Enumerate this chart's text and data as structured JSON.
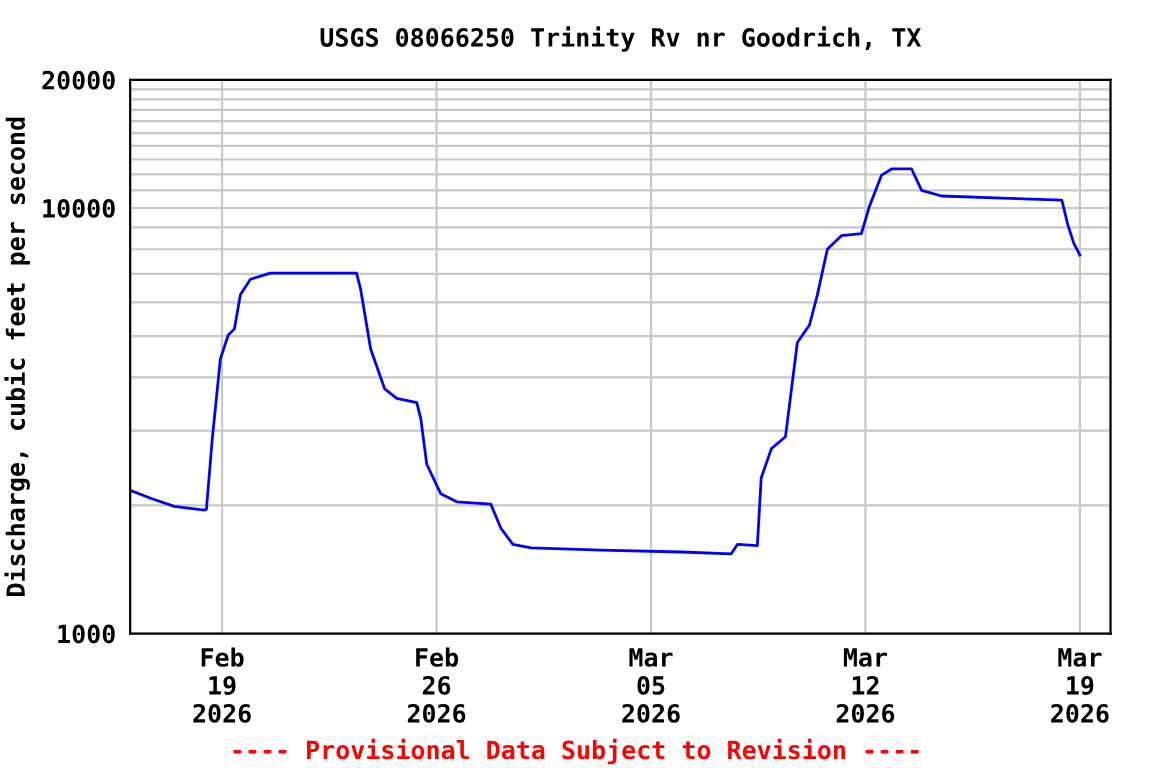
{
  "chart_data": {
    "type": "line",
    "title": "USGS 08066250 Trinity Rv nr Goodrich, TX",
    "ylabel": "Discharge, cubic feet per second",
    "annotations": [
      "---- Provisional Data Subject to Revision ----"
    ],
    "log": "y",
    "grid": true,
    "marker": "none",
    "line_style": "solid",
    "xlim": [
      "2026-02-16T00:00",
      "2026-03-20T00:00"
    ],
    "xticks": [
      {
        "value": "2026-02-19",
        "label": "Feb\n19\n2026"
      },
      {
        "value": "2026-02-26",
        "label": "Feb\n26\n2026"
      },
      {
        "value": "2026-03-05",
        "label": "Mar\n05\n2026"
      },
      {
        "value": "2026-03-12",
        "label": "Mar\n12\n2026"
      },
      {
        "value": "2026-03-19",
        "label": "Mar\n19\n2026"
      }
    ],
    "ylim": [
      1000,
      20000
    ],
    "yticks": [
      1000,
      {
        "value": 2000,
        "label": null
      },
      {
        "value": 3000,
        "label": null
      },
      {
        "value": 4000,
        "label": null
      },
      {
        "value": 5000,
        "label": null
      },
      {
        "value": 6000,
        "label": null
      },
      {
        "value": 7000,
        "label": null
      },
      {
        "value": 8000,
        "label": null
      },
      {
        "value": 9000,
        "label": null
      },
      10000,
      {
        "value": 11000,
        "label": null
      },
      {
        "value": 12000,
        "label": null
      },
      {
        "value": 13000,
        "label": null
      },
      {
        "value": 14000,
        "label": null
      },
      {
        "value": 15000,
        "label": null
      },
      {
        "value": 16000,
        "label": null
      },
      {
        "value": 17000,
        "label": null
      },
      {
        "value": 18000,
        "label": null
      },
      {
        "value": 19000,
        "label": null
      },
      20000
    ],
    "series": [
      {
        "color": "#0000ff",
        "x": [
          "2026-02-16T00:00",
          "2026-02-16T16:00",
          "2026-02-17T10:30",
          "2026-02-18T10:00",
          "2026-02-18T11:45",
          "2026-02-18T16:20",
          "2026-02-18T22:40",
          "2026-02-19T04:50",
          "2026-02-19T09:40",
          "2026-02-19T14:20",
          "2026-02-19T22:10",
          "2026-02-20T13:50",
          "2026-02-23T09:20",
          "2026-02-23T12:30",
          "2026-02-23T20:20",
          "2026-02-24T07:20",
          "2026-02-24T16:50",
          "2026-02-25T08:30",
          "2026-02-25T11:40",
          "2026-02-25T16:20",
          "2026-02-26T03:20",
          "2026-02-26T15:50",
          "2026-02-27T18:30",
          "2026-02-28T02:20",
          "2026-02-28T11:50",
          "2026-03-01T02:00",
          "2026-03-03T08:50",
          "2026-03-05T23:40",
          "2026-03-07T14:50",
          "2026-03-07T19:40",
          "2026-03-08T11:20",
          "2026-03-08T14:20",
          "2026-03-08T22:20",
          "2026-03-09T09:20",
          "2026-03-09T18:40",
          "2026-03-10T04:10",
          "2026-03-10T10:20",
          "2026-03-10T18:10",
          "2026-03-11T05:10",
          "2026-03-11T20:50",
          "2026-03-12T03:10",
          "2026-03-12T12:40",
          "2026-03-12T20:30",
          "2026-03-13T12:10",
          "2026-03-13T20:00",
          "2026-03-14T11:40",
          "2026-03-16T10:50",
          "2026-03-18T09:50",
          "2026-03-18T14:40",
          "2026-03-18T19:10",
          "2026-03-19T00:00"
        ],
        "values": [
          2170,
          2080,
          1990,
          1950,
          1960,
          2870,
          4420,
          5030,
          5200,
          6250,
          6800,
          7030,
          7030,
          6450,
          4670,
          3760,
          3570,
          3490,
          3200,
          2500,
          2130,
          2040,
          2015,
          1770,
          1620,
          1590,
          1570,
          1555,
          1540,
          1620,
          1610,
          2320,
          2720,
          2900,
          4830,
          5310,
          6250,
          8000,
          8610,
          8700,
          10100,
          11950,
          12350,
          12350,
          11000,
          10670,
          10550,
          10440,
          9100,
          8270,
          7750
        ]
      }
    ]
  }
}
